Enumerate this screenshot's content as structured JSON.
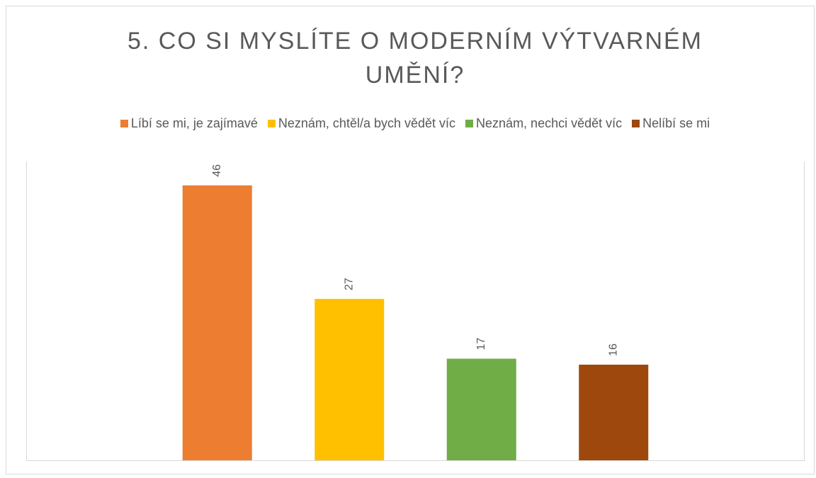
{
  "chart_data": {
    "type": "bar",
    "title": "5. CO SI MYSLÍTE O MODERNÍM VÝTVARNÉM UMĚNÍ?",
    "categories": [
      null
    ],
    "series": [
      {
        "name": "Líbí se mi, je zajímavé",
        "color": "#ed7d31",
        "values": [
          46
        ]
      },
      {
        "name": "Neznám, chtěl/a bych vědět víc",
        "color": "#ffc000",
        "values": [
          27
        ]
      },
      {
        "name": "Neznám, nechci vědět víc",
        "color": "#70ad47",
        "values": [
          17
        ]
      },
      {
        "name": "Nelíbí se mi",
        "color": "#9e480e",
        "values": [
          16
        ]
      }
    ],
    "ylim": [
      0,
      50
    ],
    "legend": "top",
    "data_labels": true
  }
}
